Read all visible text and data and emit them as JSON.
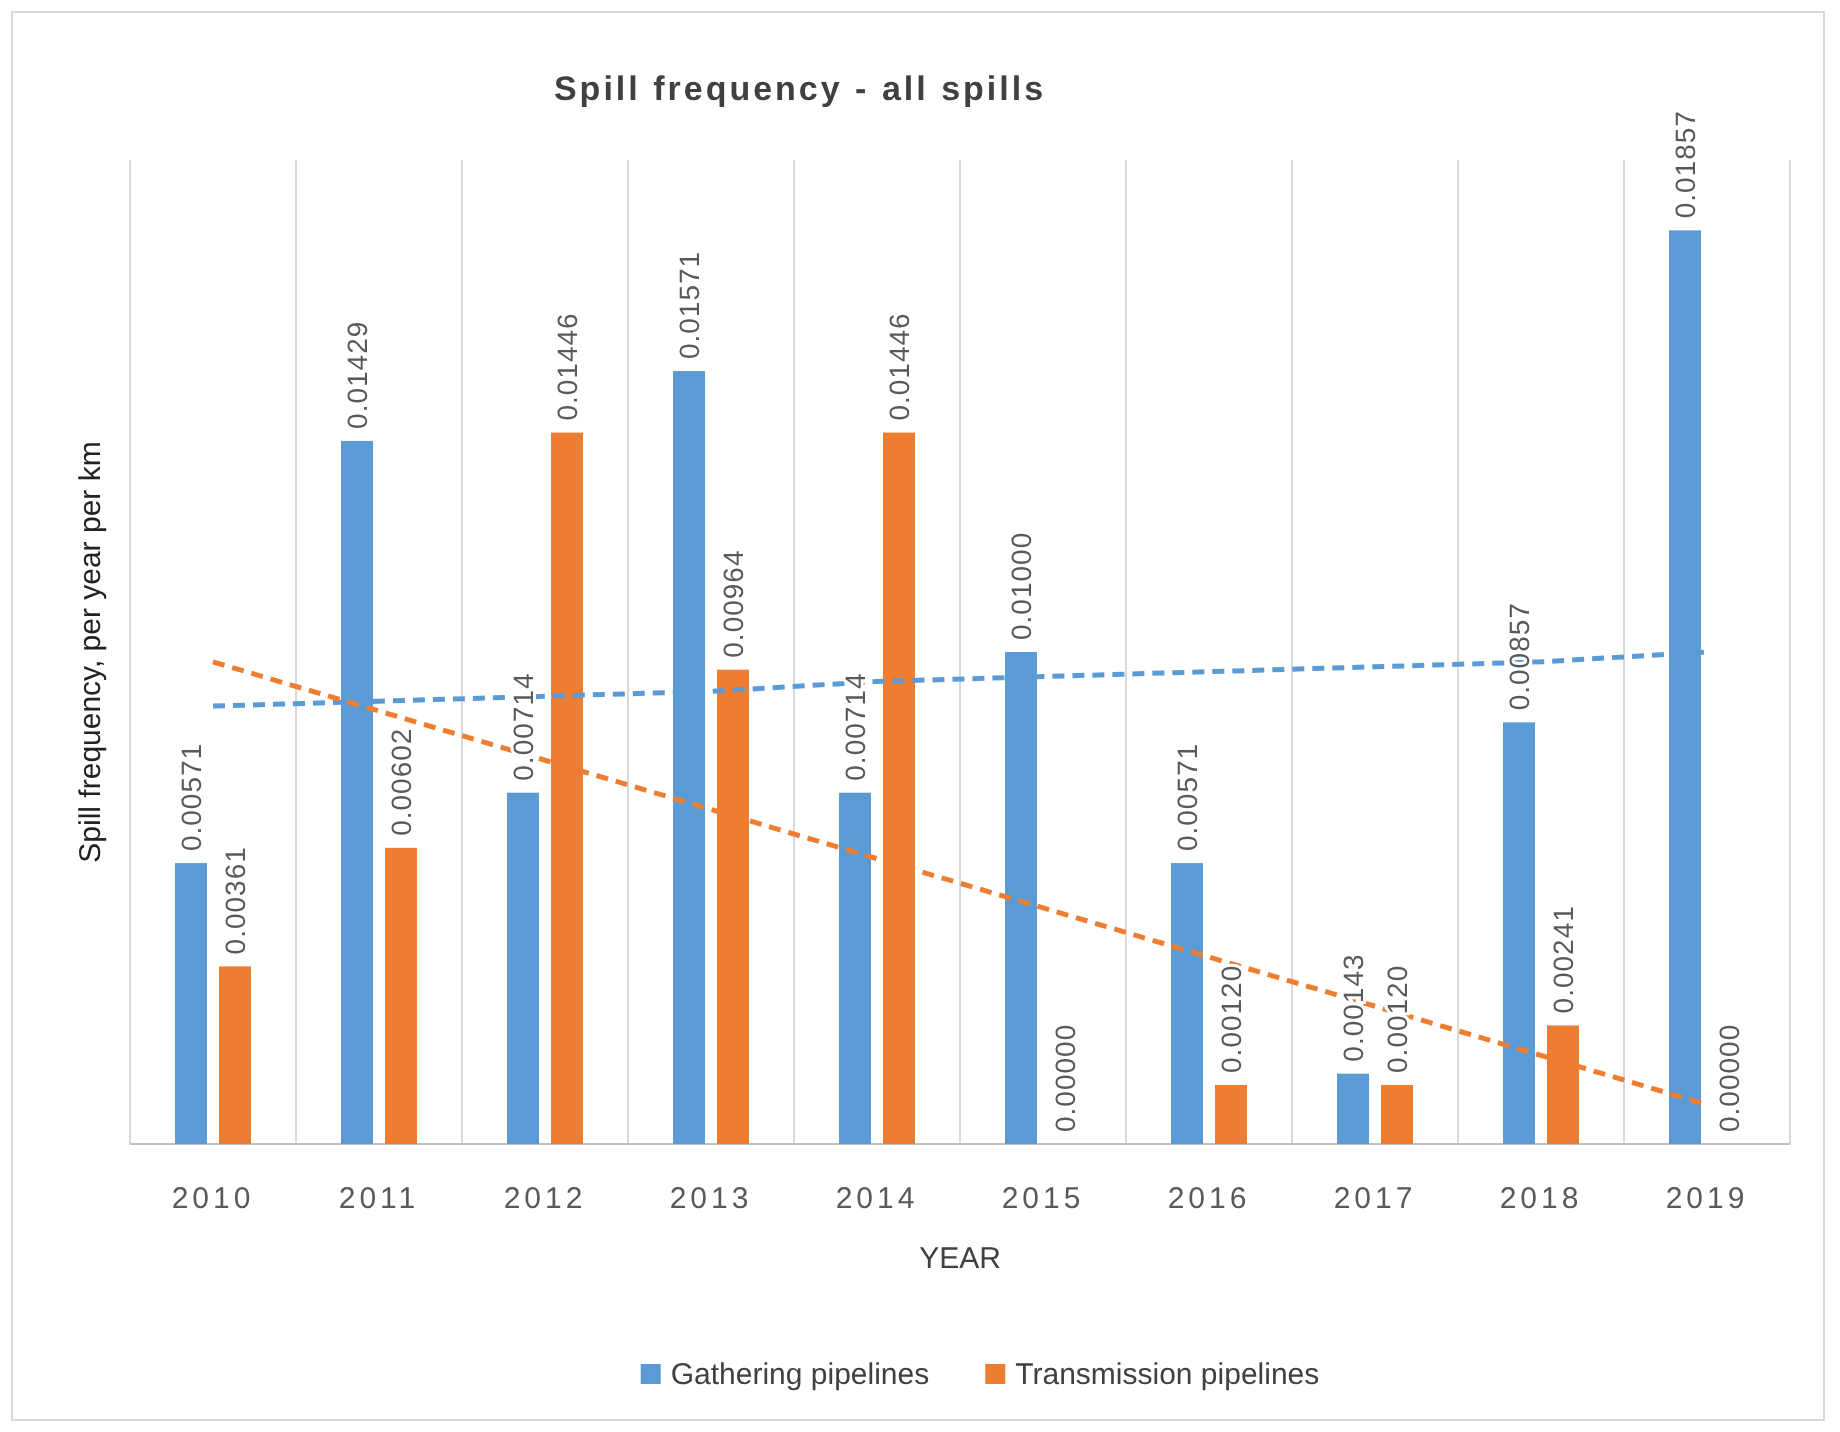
{
  "chart_data": {
    "type": "bar",
    "title": "Spill frequency - all spills",
    "xlabel": "YEAR",
    "ylabel": "Spill  frequency, per year per km",
    "categories": [
      "2010",
      "2011",
      "2012",
      "2013",
      "2014",
      "2015",
      "2016",
      "2017",
      "2018",
      "2019"
    ],
    "ylim": [
      0,
      0.02
    ],
    "tick_labels": "x",
    "grid": "x",
    "legend": "bottom",
    "series": [
      {
        "name": "Gathering pipelines",
        "color": "#5b9bd5",
        "values": [
          0.00571,
          0.01429,
          0.00714,
          0.01571,
          0.00714,
          0.01,
          0.00571,
          0.00143,
          0.00857,
          0.01857
        ],
        "value_labels": [
          "0.00571",
          "0.01429",
          "0.00714",
          "0.01571",
          "0.00714",
          "0.01000",
          "0.00571",
          "0.00143",
          "0.00857",
          "0.01857"
        ]
      },
      {
        "name": "Transmission pipelines",
        "color": "#ed7d31",
        "values": [
          0.00361,
          0.00602,
          0.01446,
          0.00964,
          0.01446,
          0,
          0.0012,
          0.0012,
          0.00241,
          0
        ],
        "value_labels": [
          "0.00361",
          "0.00602",
          "0.01446",
          "0.00964",
          "0.01446",
          "0.00000",
          "0.00120",
          "0.00120",
          "0.00241",
          "0.00000"
        ]
      },
      {
        "type": "line",
        "color": "#5b9bd5",
        "line_style": "dashed",
        "values": [
          0.0089,
          0.009,
          0.0091,
          0.0092,
          0.0094,
          0.0095,
          0.0096,
          0.0097,
          0.0098,
          0.01
        ]
      },
      {
        "type": "line",
        "color": "#ed7d31",
        "line_style": "dashed",
        "values": [
          0.0098,
          0.0088,
          0.0078,
          0.0068,
          0.0058,
          0.0048,
          0.0038,
          0.0028,
          0.0018,
          0.0008
        ]
      }
    ]
  }
}
